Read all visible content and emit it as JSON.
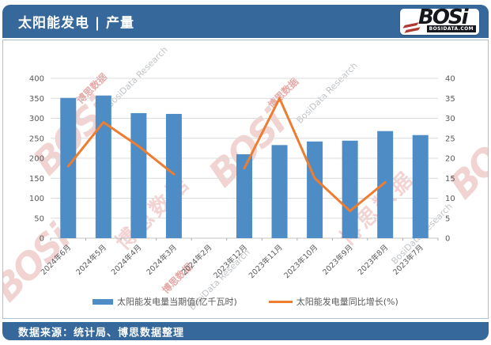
{
  "header": {
    "title": "太阳能发电 | 产量",
    "logo": {
      "name": "BOSi",
      "domain": "BOSIDATA.COM"
    }
  },
  "footer": {
    "source": "数据来源：统计局、博思数据整理"
  },
  "watermark": {
    "logo": "BOSi",
    "cn": "博思数据",
    "en": "BosiData Research"
  },
  "colors": {
    "header_blue": "#36689B",
    "bar_blue": "#4E8CC6",
    "line_orange": "#ED7D31",
    "gridline": "#DCDCDC",
    "axis_text": "#595959"
  },
  "chart_data": {
    "type": "bar",
    "subtype": "bar-line combo, dual axis",
    "categories": [
      "2024年6月",
      "2024年5月",
      "2024年4月",
      "2024年3月",
      "2024年2月",
      "2023年12月",
      "2023年11月",
      "2023年10月",
      "2023年9月",
      "2023年8月",
      "2023年7月"
    ],
    "series": [
      {
        "name": "太阳能发电量当期值(亿千瓦时)",
        "type": "bar",
        "axis": "left",
        "color": "#4E8CC6",
        "values": [
          351,
          357,
          313,
          311,
          null,
          210,
          233,
          242,
          244,
          268,
          258
        ]
      },
      {
        "name": "太阳能发电量同比增长(%)",
        "type": "line",
        "axis": "right",
        "color": "#ED7D31",
        "values": [
          18,
          29,
          23,
          16,
          null,
          17.5,
          35,
          15,
          6.8,
          14,
          null
        ]
      }
    ],
    "left_axis": {
      "min": 0,
      "max": 400,
      "step": 50
    },
    "right_axis": {
      "min": 0,
      "max": 40,
      "step": 5
    },
    "grid": true,
    "legend_position": "bottom",
    "title": "太阳能发电 | 产量"
  }
}
